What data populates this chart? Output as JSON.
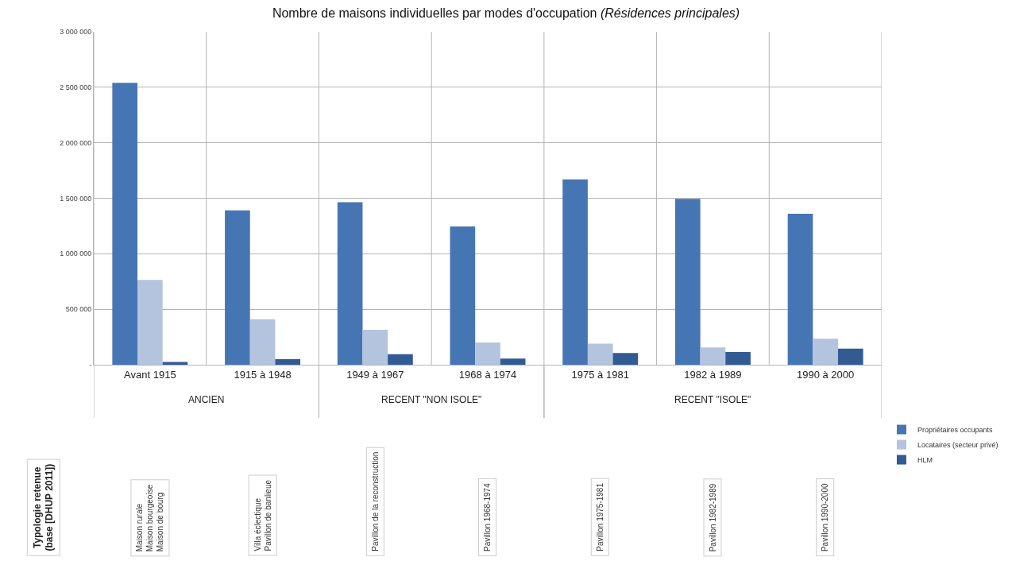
{
  "chart_data": {
    "type": "bar",
    "title": "Nombre de maisons individuelles par modes d'occupation",
    "subtitle": "(Résidences principales)",
    "categories": [
      "Avant 1915",
      "1915 à 1948",
      "1949 à 1967",
      "1968 à 1974",
      "1975 à 1981",
      "1982 à 1989",
      "1990 à 2000"
    ],
    "series": [
      {
        "name": "Propriétaires occupants",
        "color": "#4675b3",
        "values": [
          2540000,
          1390000,
          1465000,
          1245000,
          1670000,
          1495000,
          1360000
        ]
      },
      {
        "name": "Locataires (secteur privé)",
        "color": "#b4c3de",
        "values": [
          765000,
          410000,
          315000,
          200000,
          190000,
          155000,
          235000
        ]
      },
      {
        "name": "HLM",
        "color": "#325b94",
        "values": [
          25000,
          50000,
          95000,
          55000,
          105000,
          115000,
          145000
        ]
      }
    ],
    "ylim": [
      0,
      3000000
    ],
    "yticks": [
      {
        "value": 0,
        "label": "-"
      },
      {
        "value": 500000,
        "label": "500 000"
      },
      {
        "value": 1000000,
        "label": "1 000 000"
      },
      {
        "value": 1500000,
        "label": "1 500 000"
      },
      {
        "value": 2000000,
        "label": "2 000 000"
      },
      {
        "value": 2500000,
        "label": "2 500 000"
      },
      {
        "value": 3000000,
        "label": "3 000 000"
      }
    ],
    "grid": true,
    "legend": "bottom right",
    "annotations": [
      "ANCIEN",
      "RECENT \"NON ISOLE\"",
      "RECENT \"ISOLE\"",
      "Typologie retenue\n(base [DHUP 2011])",
      "Maison rurale\nMaison bourgeoise\nMaison de bourg",
      "Villa éclectique\nPavillon de banlieue",
      "Pavillon de la reconstruction",
      "Pavillon 1968-1974",
      "Pavillon 1975-1981",
      "Pavillon 1982-1989",
      "Pavillon 1990-2000"
    ]
  }
}
